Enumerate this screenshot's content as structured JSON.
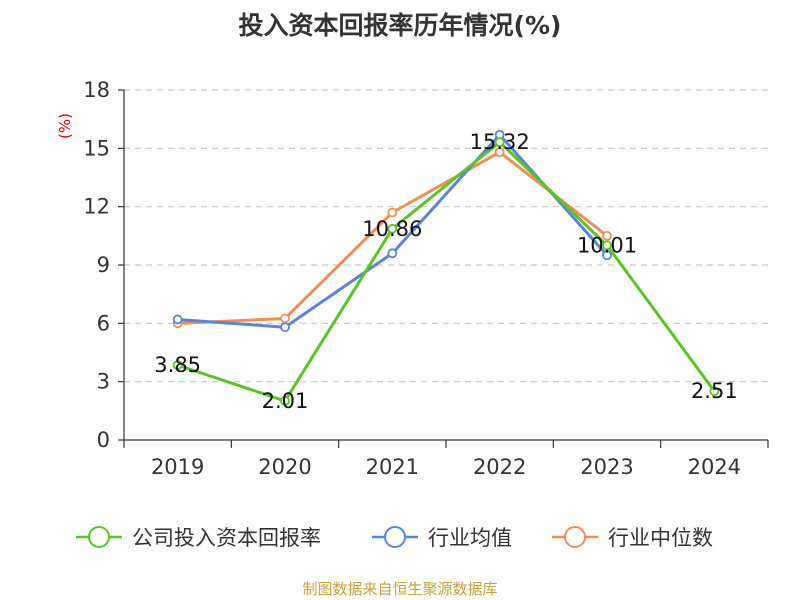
{
  "title": "投入资本回报率历年情况(%)",
  "source": "制图数据来自恒生聚源数据库",
  "chart_data": {
    "type": "line",
    "title": "投入资本回报率历年情况(%)",
    "ylabel": "(%)",
    "xlabel": "",
    "categories": [
      "2019",
      "2020",
      "2021",
      "2022",
      "2023",
      "2024"
    ],
    "ylim": [
      0,
      18
    ],
    "yticks": [
      0,
      3,
      6,
      9,
      12,
      15,
      18
    ],
    "grid": true,
    "legend_position": "bottom",
    "series": [
      {
        "name": "公司投入资本回报率",
        "color": "#5dc229",
        "values": [
          3.85,
          2.01,
          10.86,
          15.32,
          10.01,
          2.51
        ],
        "labels": [
          "3.85",
          "2.01",
          "10.86",
          "15.32",
          "10.01",
          "2.51"
        ]
      },
      {
        "name": "行业均值",
        "color": "#5b84d6",
        "values": [
          6.2,
          5.8,
          9.6,
          15.7,
          9.5,
          null
        ]
      },
      {
        "name": "行业中位数",
        "color": "#f08e5a",
        "values": [
          6.0,
          6.25,
          11.7,
          14.8,
          10.5,
          null
        ]
      }
    ]
  }
}
